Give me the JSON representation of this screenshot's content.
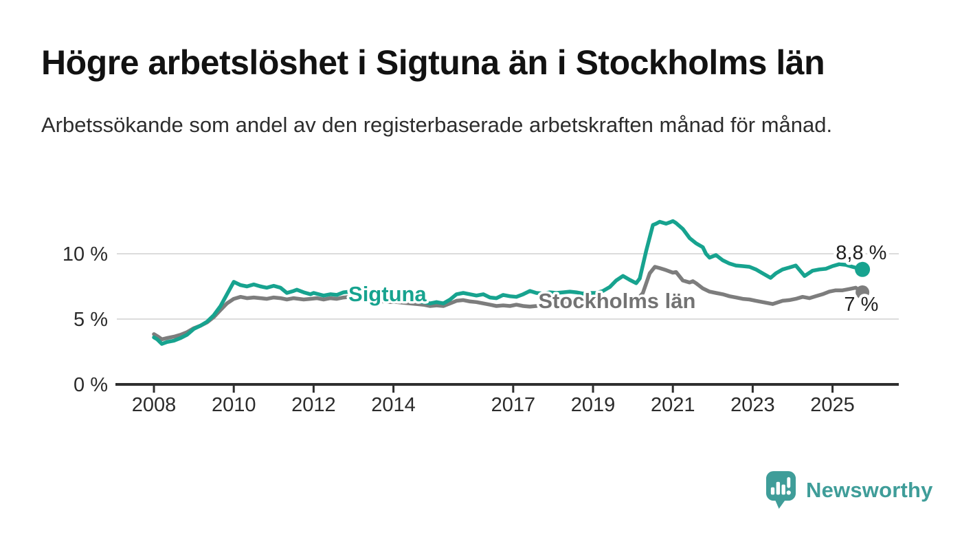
{
  "header": {
    "title": "Högre arbetslöshet i Sigtuna än i Stockholms län",
    "subtitle": "Arbetssökande som andel av den registerbaserade arbetskraften månad för månad."
  },
  "footer": {
    "brand": "Newsworthy",
    "brand_color": "#3f9d99",
    "logo_icon": "speech-bubble-bar-chart-icon"
  },
  "colors": {
    "sigtuna": "#17a38f",
    "stockholm": "#7d7d7d",
    "stockholm_label": "#737373",
    "grid": "#dcdcdc",
    "axis": "#2e2e2e",
    "end_label_text": "#1f1f1f"
  },
  "chart_data": {
    "type": "line",
    "title": "Högre arbetslöshet i Sigtuna än i Stockholms län",
    "ylabel": "",
    "xlabel": "",
    "grid": true,
    "xlim": [
      2007.07,
      2026.66
    ],
    "ylim": [
      0,
      15
    ],
    "x_ticks": [
      {
        "value": 2008,
        "label": "2008"
      },
      {
        "value": 2010,
        "label": "2010"
      },
      {
        "value": 2012,
        "label": "2012"
      },
      {
        "value": 2014,
        "label": "2014"
      },
      {
        "value": 2017,
        "label": "2017"
      },
      {
        "value": 2019,
        "label": "2019"
      },
      {
        "value": 2021,
        "label": "2021"
      },
      {
        "value": 2023,
        "label": "2023"
      },
      {
        "value": 2025,
        "label": "2025"
      }
    ],
    "y_ticks": [
      {
        "value": 0,
        "label": "0 %"
      },
      {
        "value": 5,
        "label": "5 %"
      },
      {
        "value": 10,
        "label": "10 %"
      }
    ],
    "series": [
      {
        "name": "Stockholms län",
        "color": "#7d7d7d",
        "label_color": "#737373",
        "end_label": "7 %",
        "end_value": 7.0,
        "label_anchor": {
          "x": 2019.6,
          "y": 5.84
        },
        "end_label_anchor": {
          "x": 2025.72,
          "y": 5.63
        },
        "points": [
          [
            2008.0,
            3.85
          ],
          [
            2008.08,
            3.7
          ],
          [
            2008.2,
            3.45
          ],
          [
            2008.33,
            3.55
          ],
          [
            2008.5,
            3.65
          ],
          [
            2008.67,
            3.8
          ],
          [
            2008.83,
            4.0
          ],
          [
            2009.0,
            4.3
          ],
          [
            2009.17,
            4.5
          ],
          [
            2009.33,
            4.75
          ],
          [
            2009.5,
            5.15
          ],
          [
            2009.67,
            5.7
          ],
          [
            2009.83,
            6.2
          ],
          [
            2010.0,
            6.55
          ],
          [
            2010.17,
            6.7
          ],
          [
            2010.33,
            6.6
          ],
          [
            2010.5,
            6.65
          ],
          [
            2010.67,
            6.6
          ],
          [
            2010.83,
            6.55
          ],
          [
            2011.0,
            6.65
          ],
          [
            2011.17,
            6.6
          ],
          [
            2011.33,
            6.5
          ],
          [
            2011.5,
            6.6
          ],
          [
            2011.75,
            6.5
          ],
          [
            2011.92,
            6.55
          ],
          [
            2012.08,
            6.6
          ],
          [
            2012.25,
            6.5
          ],
          [
            2012.42,
            6.6
          ],
          [
            2012.58,
            6.55
          ],
          [
            2012.75,
            6.65
          ],
          [
            2012.92,
            6.7
          ],
          [
            2013.08,
            6.6
          ],
          [
            2013.25,
            6.5
          ],
          [
            2013.42,
            6.45
          ],
          [
            2013.58,
            6.4
          ],
          [
            2013.75,
            6.35
          ],
          [
            2013.92,
            6.3
          ],
          [
            2014.08,
            6.3
          ],
          [
            2014.25,
            6.25
          ],
          [
            2014.42,
            6.2
          ],
          [
            2014.58,
            6.15
          ],
          [
            2014.75,
            6.1
          ],
          [
            2014.92,
            6.0
          ],
          [
            2015.08,
            6.05
          ],
          [
            2015.25,
            6.0
          ],
          [
            2015.42,
            6.2
          ],
          [
            2015.58,
            6.4
          ],
          [
            2015.75,
            6.45
          ],
          [
            2015.92,
            6.35
          ],
          [
            2016.08,
            6.3
          ],
          [
            2016.25,
            6.2
          ],
          [
            2016.42,
            6.1
          ],
          [
            2016.58,
            6.0
          ],
          [
            2016.75,
            6.05
          ],
          [
            2016.92,
            6.0
          ],
          [
            2017.08,
            6.1
          ],
          [
            2017.25,
            6.0
          ],
          [
            2017.42,
            5.95
          ],
          [
            2017.58,
            6.0
          ],
          [
            2017.75,
            6.15
          ],
          [
            2017.92,
            6.2
          ],
          [
            2018.08,
            6.2
          ],
          [
            2018.25,
            6.25
          ],
          [
            2018.42,
            6.3
          ],
          [
            2018.58,
            6.25
          ],
          [
            2018.75,
            6.3
          ],
          [
            2018.92,
            6.35
          ],
          [
            2019.08,
            6.4
          ],
          [
            2019.25,
            6.4
          ],
          [
            2019.42,
            6.45
          ],
          [
            2019.58,
            6.5
          ],
          [
            2019.75,
            6.5
          ],
          [
            2019.92,
            6.45
          ],
          [
            2020.08,
            6.4
          ],
          [
            2020.25,
            7.0
          ],
          [
            2020.42,
            8.5
          ],
          [
            2020.55,
            9.0
          ],
          [
            2020.67,
            8.9
          ],
          [
            2020.83,
            8.75
          ],
          [
            2021.0,
            8.55
          ],
          [
            2021.08,
            8.6
          ],
          [
            2021.25,
            7.95
          ],
          [
            2021.42,
            7.8
          ],
          [
            2021.5,
            7.9
          ],
          [
            2021.58,
            7.75
          ],
          [
            2021.75,
            7.35
          ],
          [
            2021.92,
            7.1
          ],
          [
            2022.08,
            7.0
          ],
          [
            2022.25,
            6.9
          ],
          [
            2022.42,
            6.75
          ],
          [
            2022.58,
            6.65
          ],
          [
            2022.75,
            6.55
          ],
          [
            2022.92,
            6.5
          ],
          [
            2023.08,
            6.4
          ],
          [
            2023.25,
            6.3
          ],
          [
            2023.5,
            6.15
          ],
          [
            2023.75,
            6.4
          ],
          [
            2023.92,
            6.45
          ],
          [
            2024.08,
            6.55
          ],
          [
            2024.25,
            6.7
          ],
          [
            2024.42,
            6.6
          ],
          [
            2024.58,
            6.75
          ],
          [
            2024.75,
            6.9
          ],
          [
            2024.92,
            7.1
          ],
          [
            2025.08,
            7.2
          ],
          [
            2025.25,
            7.2
          ],
          [
            2025.42,
            7.3
          ],
          [
            2025.58,
            7.4
          ],
          [
            2025.75,
            7.05
          ]
        ]
      },
      {
        "name": "Sigtuna",
        "color": "#17a38f",
        "label_color": "#17a38f",
        "end_label": "8,8 %",
        "end_value": 8.8,
        "label_anchor": {
          "x": 2013.85,
          "y": 6.37
        },
        "end_label_anchor": {
          "x": 2025.72,
          "y": 9.58
        },
        "points": [
          [
            2008.0,
            3.6
          ],
          [
            2008.08,
            3.45
          ],
          [
            2008.2,
            3.1
          ],
          [
            2008.33,
            3.25
          ],
          [
            2008.5,
            3.35
          ],
          [
            2008.67,
            3.55
          ],
          [
            2008.83,
            3.8
          ],
          [
            2009.0,
            4.25
          ],
          [
            2009.17,
            4.5
          ],
          [
            2009.33,
            4.8
          ],
          [
            2009.5,
            5.3
          ],
          [
            2009.67,
            6.0
          ],
          [
            2009.83,
            6.9
          ],
          [
            2010.0,
            7.85
          ],
          [
            2010.17,
            7.6
          ],
          [
            2010.33,
            7.5
          ],
          [
            2010.5,
            7.65
          ],
          [
            2010.67,
            7.5
          ],
          [
            2010.83,
            7.4
          ],
          [
            2011.0,
            7.55
          ],
          [
            2011.17,
            7.4
          ],
          [
            2011.33,
            7.0
          ],
          [
            2011.5,
            7.15
          ],
          [
            2011.58,
            7.25
          ],
          [
            2011.75,
            7.05
          ],
          [
            2011.92,
            6.9
          ],
          [
            2012.0,
            7.0
          ],
          [
            2012.25,
            6.8
          ],
          [
            2012.42,
            6.9
          ],
          [
            2012.58,
            6.85
          ],
          [
            2012.75,
            7.05
          ],
          [
            2012.92,
            7.1
          ],
          [
            2013.08,
            7.0
          ],
          [
            2013.25,
            6.95
          ],
          [
            2013.42,
            6.85
          ],
          [
            2013.58,
            6.8
          ],
          [
            2013.75,
            6.75
          ],
          [
            2013.92,
            6.65
          ],
          [
            2014.08,
            6.6
          ],
          [
            2014.25,
            6.5
          ],
          [
            2014.42,
            6.45
          ],
          [
            2014.58,
            6.35
          ],
          [
            2014.75,
            6.3
          ],
          [
            2014.92,
            6.2
          ],
          [
            2015.08,
            6.3
          ],
          [
            2015.25,
            6.2
          ],
          [
            2015.42,
            6.5
          ],
          [
            2015.58,
            6.9
          ],
          [
            2015.75,
            7.0
          ],
          [
            2015.92,
            6.9
          ],
          [
            2016.08,
            6.8
          ],
          [
            2016.25,
            6.9
          ],
          [
            2016.42,
            6.65
          ],
          [
            2016.58,
            6.6
          ],
          [
            2016.75,
            6.85
          ],
          [
            2016.92,
            6.75
          ],
          [
            2017.08,
            6.7
          ],
          [
            2017.25,
            6.9
          ],
          [
            2017.42,
            7.15
          ],
          [
            2017.58,
            7.0
          ],
          [
            2017.75,
            6.95
          ],
          [
            2017.92,
            7.05
          ],
          [
            2018.08,
            7.0
          ],
          [
            2018.25,
            7.05
          ],
          [
            2018.42,
            7.1
          ],
          [
            2018.58,
            7.05
          ],
          [
            2018.75,
            6.95
          ],
          [
            2018.92,
            7.0
          ],
          [
            2019.08,
            7.0
          ],
          [
            2019.25,
            7.15
          ],
          [
            2019.42,
            7.45
          ],
          [
            2019.58,
            7.95
          ],
          [
            2019.75,
            8.3
          ],
          [
            2019.92,
            8.0
          ],
          [
            2020.08,
            7.75
          ],
          [
            2020.17,
            8.1
          ],
          [
            2020.33,
            10.2
          ],
          [
            2020.5,
            12.2
          ],
          [
            2020.58,
            12.3
          ],
          [
            2020.67,
            12.45
          ],
          [
            2020.83,
            12.3
          ],
          [
            2020.92,
            12.4
          ],
          [
            2021.0,
            12.5
          ],
          [
            2021.08,
            12.35
          ],
          [
            2021.25,
            11.9
          ],
          [
            2021.42,
            11.2
          ],
          [
            2021.58,
            10.8
          ],
          [
            2021.75,
            10.5
          ],
          [
            2021.83,
            10.0
          ],
          [
            2021.92,
            9.7
          ],
          [
            2022.08,
            9.9
          ],
          [
            2022.25,
            9.5
          ],
          [
            2022.42,
            9.25
          ],
          [
            2022.58,
            9.1
          ],
          [
            2022.75,
            9.05
          ],
          [
            2022.92,
            9.0
          ],
          [
            2023.08,
            8.8
          ],
          [
            2023.25,
            8.5
          ],
          [
            2023.45,
            8.15
          ],
          [
            2023.58,
            8.5
          ],
          [
            2023.75,
            8.8
          ],
          [
            2023.92,
            8.95
          ],
          [
            2024.08,
            9.1
          ],
          [
            2024.3,
            8.3
          ],
          [
            2024.5,
            8.7
          ],
          [
            2024.67,
            8.8
          ],
          [
            2024.83,
            8.85
          ],
          [
            2025.0,
            9.05
          ],
          [
            2025.17,
            9.2
          ],
          [
            2025.33,
            9.15
          ],
          [
            2025.5,
            9.0
          ],
          [
            2025.62,
            8.9
          ],
          [
            2025.75,
            8.8
          ]
        ]
      }
    ]
  }
}
